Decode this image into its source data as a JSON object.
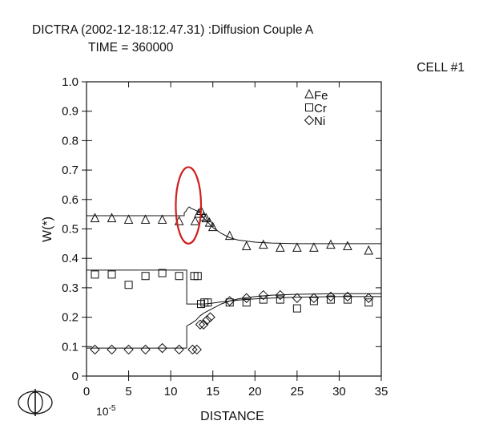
{
  "header": {
    "line1": "DICTRA (2002-12-18:12.47.31) :Diffusion Couple A",
    "line2": "TIME = 360000",
    "cell": "CELL #1"
  },
  "chart_data": {
    "type": "line",
    "title": "DICTRA (2002-12-18:12.47.31) :Diffusion Couple A",
    "subtitle": "TIME = 360000",
    "xlabel": "DISTANCE",
    "ylabel": "W(*)",
    "x_scale_label": "10-5",
    "xlim": [
      0,
      35
    ],
    "ylim": [
      0,
      1.0
    ],
    "xticks": [
      "0",
      "5",
      "10",
      "15",
      "20",
      "25",
      "30",
      "35"
    ],
    "yticks": [
      "0",
      "0.1",
      "0.2",
      "0.3",
      "0.4",
      "0.5",
      "0.6",
      "0.7",
      "0.8",
      "0.9",
      "1.0"
    ],
    "legend": {
      "placement": "top-right",
      "entries": [
        {
          "label": "Fe",
          "marker": "triangle"
        },
        {
          "label": "Cr",
          "marker": "square"
        },
        {
          "label": "Ni",
          "marker": "diamond"
        }
      ]
    },
    "annotation": {
      "shape": "ellipse",
      "color": "#d11d1d",
      "center": [
        12.1,
        0.58
      ],
      "radius": [
        1.5,
        0.13
      ]
    },
    "series": [
      {
        "name": "Fe",
        "marker": "triangle",
        "curve": [
          [
            0,
            0.545
          ],
          [
            11.6,
            0.545
          ],
          [
            11.6,
            0.555
          ],
          [
            11.8,
            0.56
          ],
          [
            12.0,
            0.57
          ],
          [
            12.2,
            0.575
          ],
          [
            12.4,
            0.57
          ],
          [
            12.8,
            0.565
          ],
          [
            13.2,
            0.56
          ],
          [
            13.6,
            0.55
          ],
          [
            14.0,
            0.535
          ],
          [
            14.5,
            0.52
          ],
          [
            15.0,
            0.505
          ],
          [
            16.0,
            0.485
          ],
          [
            17.0,
            0.47
          ],
          [
            18.0,
            0.462
          ],
          [
            20.0,
            0.455
          ],
          [
            22.0,
            0.452
          ],
          [
            25.0,
            0.45
          ],
          [
            35.0,
            0.45
          ]
        ],
        "points": [
          [
            1,
            0.535
          ],
          [
            3,
            0.535
          ],
          [
            5,
            0.53
          ],
          [
            7,
            0.53
          ],
          [
            9,
            0.53
          ],
          [
            11,
            0.525
          ],
          [
            12.9,
            0.525
          ],
          [
            13.3,
            0.55
          ],
          [
            13.6,
            0.56
          ],
          [
            13.9,
            0.54
          ],
          [
            14.2,
            0.535
          ],
          [
            14.6,
            0.52
          ],
          [
            15.0,
            0.505
          ],
          [
            17,
            0.475
          ],
          [
            19,
            0.44
          ],
          [
            21,
            0.445
          ],
          [
            23,
            0.435
          ],
          [
            25,
            0.435
          ],
          [
            27,
            0.435
          ],
          [
            29,
            0.445
          ],
          [
            31,
            0.44
          ],
          [
            33.5,
            0.425
          ]
        ]
      },
      {
        "name": "Cr",
        "marker": "square",
        "curve": [
          [
            0,
            0.36
          ],
          [
            11.9,
            0.36
          ],
          [
            11.9,
            0.245
          ],
          [
            13.0,
            0.245
          ],
          [
            14.0,
            0.245
          ],
          [
            15.0,
            0.248
          ],
          [
            16.0,
            0.252
          ],
          [
            18.0,
            0.258
          ],
          [
            20.0,
            0.262
          ],
          [
            22.0,
            0.265
          ],
          [
            25.0,
            0.268
          ],
          [
            30.0,
            0.27
          ],
          [
            35.0,
            0.27
          ]
        ],
        "points": [
          [
            1,
            0.345
          ],
          [
            3,
            0.345
          ],
          [
            5,
            0.31
          ],
          [
            7,
            0.34
          ],
          [
            9,
            0.35
          ],
          [
            11,
            0.34
          ],
          [
            12.8,
            0.34
          ],
          [
            13.2,
            0.34
          ],
          [
            13.6,
            0.245
          ],
          [
            14.0,
            0.25
          ],
          [
            14.4,
            0.25
          ],
          [
            17,
            0.25
          ],
          [
            19,
            0.25
          ],
          [
            21,
            0.26
          ],
          [
            23,
            0.26
          ],
          [
            25,
            0.23
          ],
          [
            27,
            0.255
          ],
          [
            29,
            0.26
          ],
          [
            31,
            0.26
          ],
          [
            33.5,
            0.25
          ]
        ]
      },
      {
        "name": "Ni",
        "marker": "diamond",
        "curve": [
          [
            0,
            0.095
          ],
          [
            11.9,
            0.095
          ],
          [
            11.9,
            0.17
          ],
          [
            12.5,
            0.18
          ],
          [
            13.0,
            0.19
          ],
          [
            13.5,
            0.205
          ],
          [
            14.0,
            0.215
          ],
          [
            15.0,
            0.23
          ],
          [
            16.0,
            0.245
          ],
          [
            17.0,
            0.255
          ],
          [
            18.0,
            0.262
          ],
          [
            20.0,
            0.27
          ],
          [
            22.0,
            0.275
          ],
          [
            25.0,
            0.278
          ],
          [
            30.0,
            0.28
          ],
          [
            35.0,
            0.28
          ]
        ],
        "points": [
          [
            1,
            0.09
          ],
          [
            3,
            0.09
          ],
          [
            5,
            0.09
          ],
          [
            7,
            0.09
          ],
          [
            9,
            0.095
          ],
          [
            11,
            0.09
          ],
          [
            12.6,
            0.09
          ],
          [
            13.1,
            0.09
          ],
          [
            13.5,
            0.175
          ],
          [
            13.9,
            0.175
          ],
          [
            14.3,
            0.19
          ],
          [
            14.7,
            0.2
          ],
          [
            17,
            0.255
          ],
          [
            19,
            0.265
          ],
          [
            21,
            0.275
          ],
          [
            23,
            0.275
          ],
          [
            25,
            0.265
          ],
          [
            27,
            0.265
          ],
          [
            29,
            0.27
          ],
          [
            31,
            0.27
          ],
          [
            33.5,
            0.265
          ]
        ]
      }
    ]
  }
}
